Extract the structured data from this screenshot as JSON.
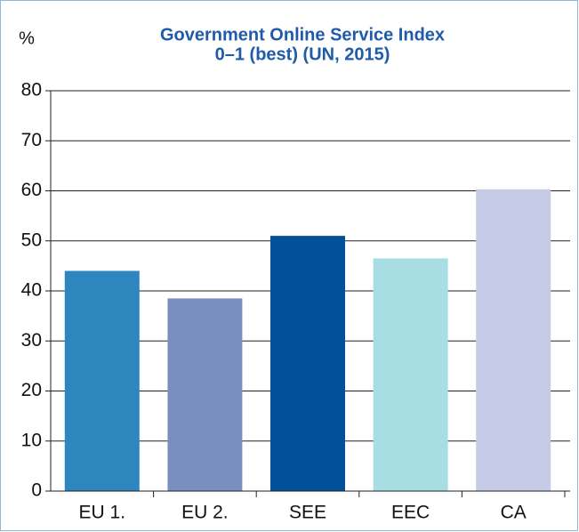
{
  "chart_data": {
    "type": "bar",
    "title": "Government Online Service Index",
    "subtitle": "0–1 (best) (UN, 2015)",
    "y_label": "%",
    "categories": [
      "EU 1.",
      "EU 2.",
      "SEE",
      "EEC",
      "CA"
    ],
    "values": [
      44,
      38.5,
      51,
      46.5,
      60.3
    ],
    "colors": [
      "#2e86bf",
      "#7b8fbf",
      "#00509a",
      "#a8dde3",
      "#c5cbe5"
    ],
    "ylim": [
      0,
      80
    ],
    "yticks": [
      0,
      10,
      20,
      30,
      40,
      50,
      60,
      70,
      80
    ],
    "grid": true
  }
}
